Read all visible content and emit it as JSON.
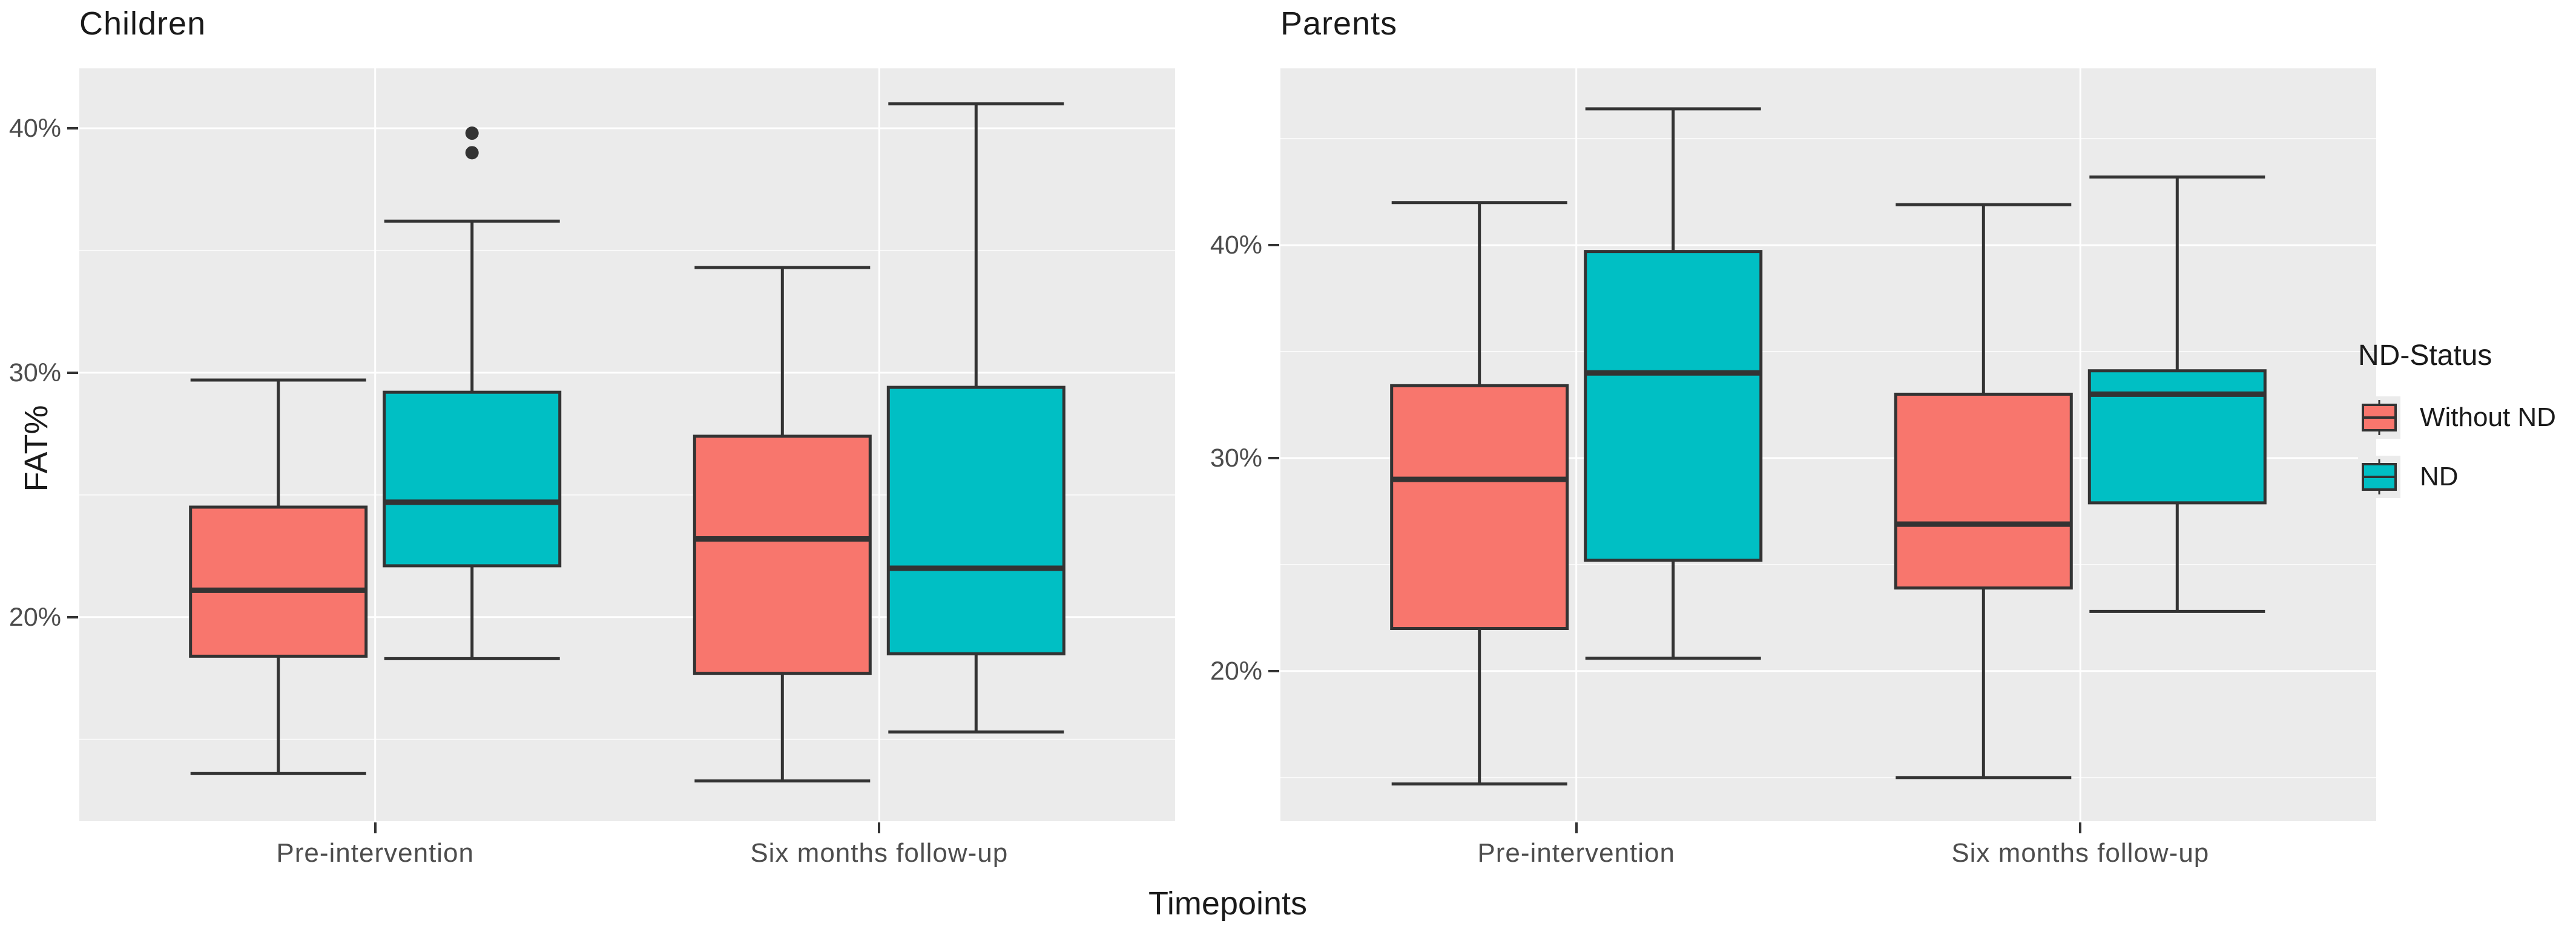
{
  "chart_data": {
    "type": "boxplot",
    "title": "",
    "ylabel": "FAT%",
    "xlabel": "Timepoints",
    "categories": [
      "Pre-intervention",
      "Six months follow-up"
    ],
    "series": [
      {
        "name": "Without ND",
        "color": "#F8766D"
      },
      {
        "name": "ND",
        "color": "#00BFC4"
      }
    ],
    "legend": {
      "title": "ND-Status",
      "position": "right",
      "entries": [
        {
          "label": "Without ND",
          "color": "#F8766D"
        },
        {
          "label": "ND",
          "color": "#00BFC4"
        }
      ]
    },
    "grid": "on",
    "panels": [
      {
        "title": "Children",
        "y_domain": [
          11.65,
          42.45
        ],
        "y_major_ticks": [
          {
            "value": 40,
            "label": "40%"
          },
          {
            "value": 30,
            "label": "30%"
          },
          {
            "value": 20,
            "label": "20%"
          }
        ],
        "y_minor_ticks": [
          35,
          25,
          15
        ],
        "groups": [
          {
            "category": "Pre-intervention",
            "boxes": [
              {
                "series": "Without ND",
                "min": 13.6,
                "q1": 18.4,
                "median": 21.1,
                "q3": 24.5,
                "max": 29.7,
                "outliers": []
              },
              {
                "series": "ND",
                "min": 18.3,
                "q1": 22.1,
                "median": 24.7,
                "q3": 29.2,
                "max": 36.2,
                "outliers": [
                  39.0,
                  39.8
                ]
              }
            ]
          },
          {
            "category": "Six months follow-up",
            "boxes": [
              {
                "series": "Without ND",
                "min": 13.3,
                "q1": 17.7,
                "median": 23.2,
                "q3": 27.4,
                "max": 34.3,
                "outliers": []
              },
              {
                "series": "ND",
                "min": 15.3,
                "q1": 18.5,
                "median": 22.0,
                "q3": 29.4,
                "max": 41.0,
                "outliers": []
              }
            ]
          }
        ]
      },
      {
        "title": "Parents",
        "y_domain": [
          12.95,
          48.3
        ],
        "y_major_ticks": [
          {
            "value": 40,
            "label": "40%"
          },
          {
            "value": 30,
            "label": "30%"
          },
          {
            "value": 20,
            "label": "20%"
          }
        ],
        "y_minor_ticks": [
          45,
          35,
          25,
          15
        ],
        "groups": [
          {
            "category": "Pre-intervention",
            "boxes": [
              {
                "series": "Without ND",
                "min": 14.7,
                "q1": 22.0,
                "median": 29.0,
                "q3": 33.4,
                "max": 42.0,
                "outliers": []
              },
              {
                "series": "ND",
                "min": 20.6,
                "q1": 25.2,
                "median": 34.0,
                "q3": 39.7,
                "max": 46.4,
                "outliers": []
              }
            ]
          },
          {
            "category": "Six months follow-up",
            "boxes": [
              {
                "series": "Without ND",
                "min": 15.0,
                "q1": 23.9,
                "median": 26.9,
                "q3": 33.0,
                "max": 41.9,
                "outliers": []
              },
              {
                "series": "ND",
                "min": 22.8,
                "q1": 27.9,
                "median": 33.0,
                "q3": 34.1,
                "max": 43.2,
                "outliers": []
              }
            ]
          }
        ]
      }
    ],
    "colors": {
      "panel_background": "#EBEBEB",
      "grid_major": "#FFFFFF",
      "grid_minor": "#FFFFFF",
      "box_stroke": "#333333",
      "outlier": "#333333",
      "tick_text": "#4D4D4D",
      "title_text": "#1A1A1A"
    }
  }
}
